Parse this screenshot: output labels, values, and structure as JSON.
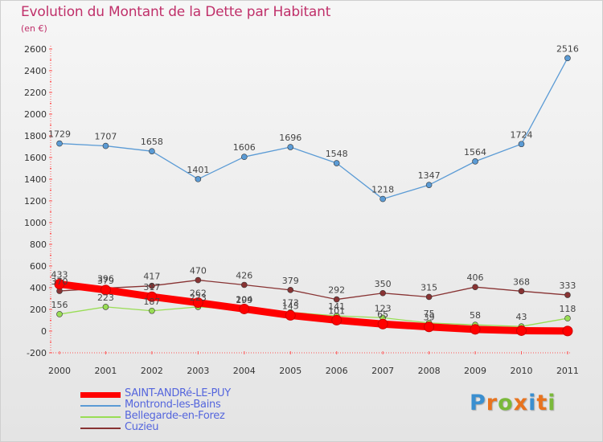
{
  "header": {
    "title": "Evolution du Montant de la Dette par Habitant",
    "unit": "(en €)"
  },
  "brand": {
    "letters": [
      "P",
      "r",
      "o",
      "x",
      "i",
      "t",
      "i"
    ],
    "colors": [
      "#3a8fd0",
      "#e8731e",
      "#7ab93a",
      "#e8731e",
      "#3a8fd0",
      "#e8731e",
      "#7ab93a"
    ]
  },
  "chart_data": {
    "type": "line",
    "title": "Evolution du Montant de la Dette par Habitant",
    "ylabel": "(en €)",
    "xlabel": "",
    "categories": [
      "2000",
      "2001",
      "2002",
      "2003",
      "2004",
      "2005",
      "2006",
      "2007",
      "2008",
      "2009",
      "2010",
      "2011"
    ],
    "ylim": [
      -200,
      2600
    ],
    "yticks": [
      -200,
      0,
      200,
      400,
      600,
      800,
      1000,
      1200,
      1400,
      1600,
      1800,
      2000,
      2200,
      2400,
      2600
    ],
    "grid": false,
    "legend": "bottom-left",
    "series": [
      {
        "name": "SAINT-ANDRé-LE-PUY",
        "color": "#ff0000",
        "values": [
          433,
          379,
          317,
          262,
          204,
          145,
          101,
          65,
          39,
          16,
          4,
          1
        ],
        "labels": [
          "433",
          "379",
          "317",
          "262",
          "204",
          "145",
          "101",
          "65",
          "39",
          "",
          "",
          ""
        ]
      },
      {
        "name": "Montrond-les-Bains",
        "color": "#5b9bd5",
        "values": [
          1729,
          1707,
          1658,
          1401,
          1606,
          1696,
          1548,
          1218,
          1347,
          1564,
          1724,
          2516
        ],
        "labels": [
          "1729",
          "1707",
          "1658",
          "1401",
          "1606",
          "1696",
          "1548",
          "1218",
          "1347",
          "1564",
          "1724",
          "2516"
        ]
      },
      {
        "name": "Bellegarde-en-Forez",
        "color": "#99dd55",
        "values": [
          156,
          223,
          187,
          223,
          199,
          173,
          141,
          123,
          75,
          58,
          43,
          118
        ],
        "labels": [
          "156",
          "223",
          "187",
          "223",
          "199",
          "173",
          "141",
          "123",
          "75",
          "58",
          "43",
          "118"
        ]
      },
      {
        "name": "Cuzieu",
        "color": "#883333",
        "values": [
          370,
          396,
          417,
          470,
          426,
          379,
          292,
          350,
          315,
          406,
          368,
          333
        ],
        "labels": [
          "370",
          "396",
          "417",
          "470",
          "426",
          "379",
          "292",
          "350",
          "315",
          "406",
          "368",
          "333"
        ]
      }
    ]
  }
}
